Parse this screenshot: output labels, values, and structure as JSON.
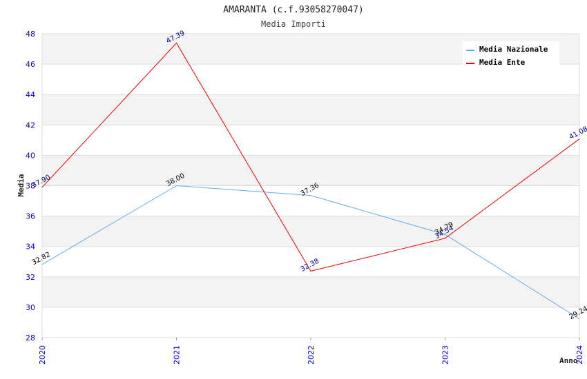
{
  "colors": {
    "nazionale": "#66aaee",
    "ente": "#ee0000",
    "band": "#f3f3f3",
    "grid": "#dddddd",
    "tick": "#0000cc",
    "ente_label": "#000088"
  },
  "chart_data": {
    "type": "line",
    "title": "AMARANTA (c.f.93058270047)",
    "subtitle": "Media Importi",
    "xlabel": "Anno",
    "ylabel": "Media",
    "x": [
      "2020",
      "2021",
      "2022",
      "2023",
      "2024"
    ],
    "ylim": [
      28,
      48
    ],
    "yticks": [
      "28",
      "30",
      "32",
      "34",
      "36",
      "38",
      "40",
      "42",
      "44",
      "46",
      "48"
    ],
    "grid": true,
    "legend_position": "top-right",
    "series": [
      {
        "name": "Media Nazionale",
        "values": [
          32.82,
          38.0,
          37.36,
          34.79,
          29.24
        ],
        "labels": [
          "32.82",
          "38.00",
          "37.36",
          "34.79",
          "29.24"
        ]
      },
      {
        "name": "Media Ente",
        "values": [
          37.9,
          47.39,
          32.38,
          34.54,
          41.08
        ],
        "labels": [
          "37.90",
          "47.39",
          "32.38",
          "34.54",
          "41.08"
        ]
      }
    ]
  }
}
